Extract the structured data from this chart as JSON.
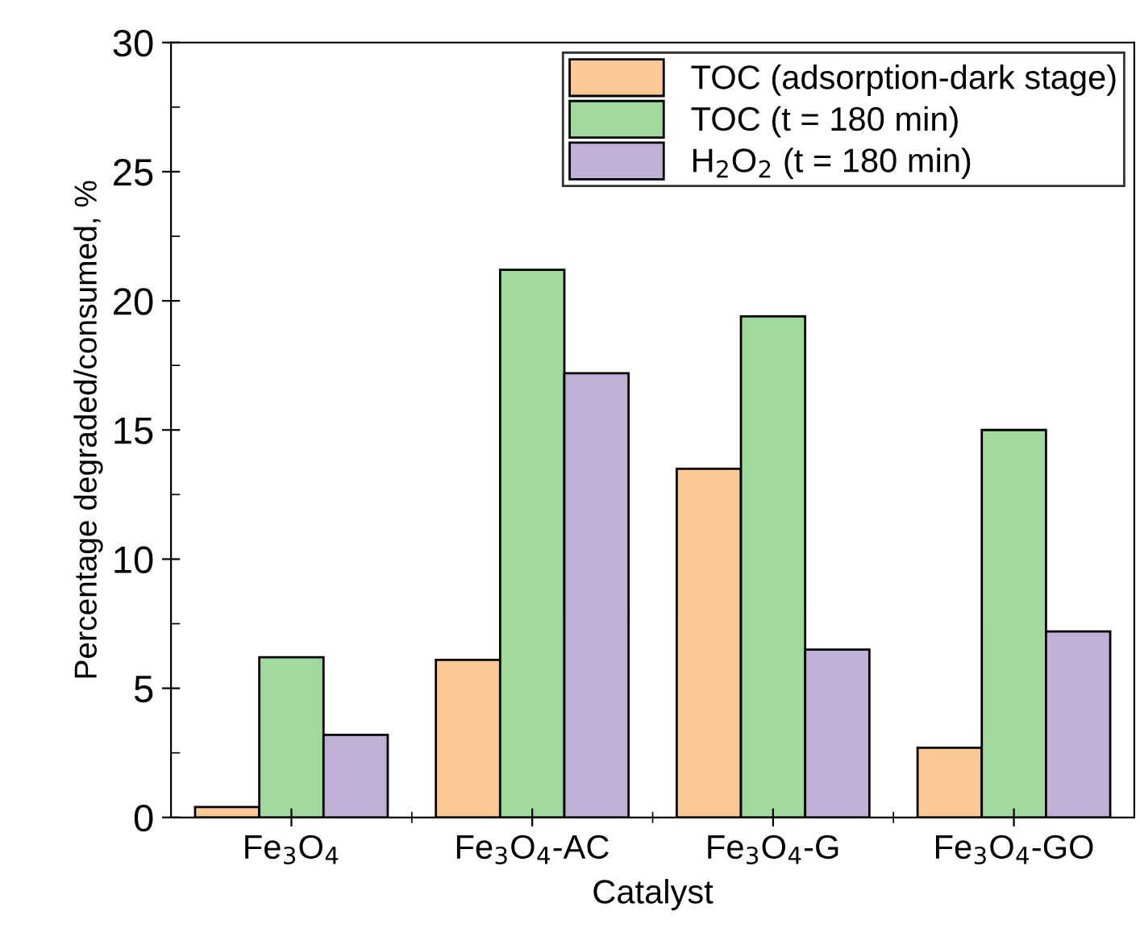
{
  "chart_data": {
    "type": "bar",
    "xlabel": "Catalyst",
    "ylabel": "Percentage degraded/consumed, %",
    "categories": [
      "Fe$_{3}$O$_{4}$",
      "Fe$_{3}$O$_{4}$-AC",
      "Fe$_{3}$O$_{4}$-G",
      "Fe$_{3}$O$_{4}$-GO"
    ],
    "series": [
      {
        "name": "TOC (adsorption-dark stage)",
        "color": "#fbc896",
        "values": [
          0.4,
          6.1,
          13.5,
          2.7
        ]
      },
      {
        "name": "TOC (t = 180 min)",
        "color": "#9fd99b",
        "values": [
          6.2,
          21.2,
          19.4,
          15.0
        ]
      },
      {
        "name": "H$_{2}$O$_{2}$ (t = 180 min)",
        "color": "#c0b0d8",
        "values": [
          3.2,
          17.2,
          6.5,
          7.2
        ]
      }
    ],
    "ylim": [
      0,
      30
    ],
    "yticks": [
      0,
      5,
      10,
      15,
      20,
      25,
      30
    ],
    "grid": false,
    "legend": "top right"
  }
}
